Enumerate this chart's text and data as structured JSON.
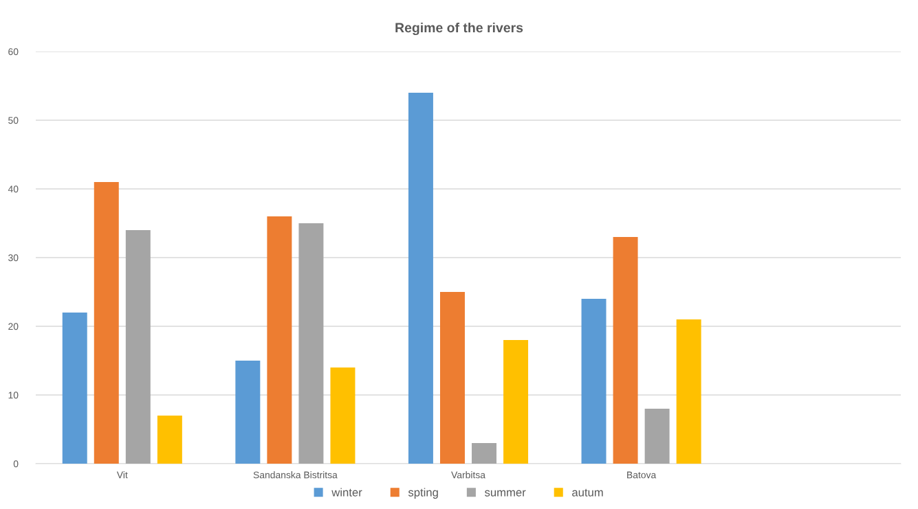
{
  "chart_data": {
    "type": "bar",
    "title": "Regime of the rivers",
    "categories": [
      "Vit",
      "Sandanska Bistritsa",
      "Varbitsa",
      "Batova",
      null
    ],
    "series": [
      {
        "name": "winter",
        "color": "#5b9bd5",
        "values": [
          22,
          15,
          54,
          24,
          null
        ]
      },
      {
        "name": "spting",
        "color": "#ed7d31",
        "values": [
          41,
          36,
          25,
          33,
          null
        ]
      },
      {
        "name": "summer",
        "color": "#a5a5a5",
        "values": [
          34,
          35,
          3,
          8,
          null
        ]
      },
      {
        "name": "autum",
        "color": "#ffc000",
        "values": [
          7,
          14,
          18,
          21,
          null
        ]
      }
    ],
    "ylim": [
      0,
      60
    ],
    "yticks": [
      0,
      10,
      20,
      30,
      40,
      50,
      60
    ],
    "grid": "y",
    "legend": "bottom"
  }
}
